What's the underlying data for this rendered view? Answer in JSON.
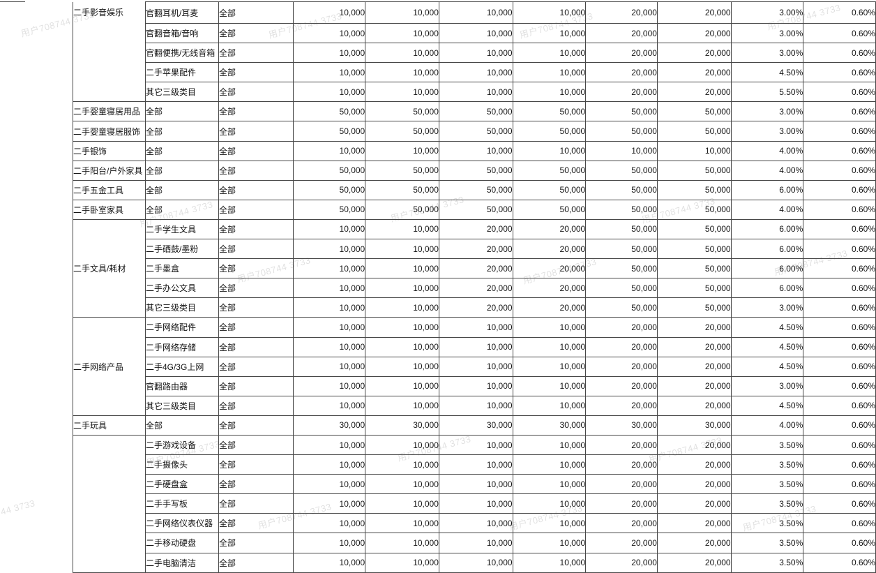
{
  "watermark": {
    "text": "用户708744 3733"
  },
  "table": {
    "rows": [
      {
        "group": "二手影音娱乐",
        "group_rowspan": 5,
        "group_valign": "top",
        "subcategory": "官翻耳机/耳麦",
        "scope": "全部",
        "values": [
          "10,000",
          "10,000",
          "10,000",
          "10,000",
          "20,000",
          "20,000"
        ],
        "rate1": "3.00%",
        "rate2": "0.60%"
      },
      {
        "subcategory": "官翻音箱/音响",
        "scope": "全部",
        "values": [
          "10,000",
          "10,000",
          "10,000",
          "10,000",
          "20,000",
          "20,000"
        ],
        "rate1": "3.00%",
        "rate2": "0.60%"
      },
      {
        "subcategory": "官翻便携/无线音箱",
        "scope": "全部",
        "values": [
          "10,000",
          "10,000",
          "10,000",
          "10,000",
          "20,000",
          "20,000"
        ],
        "rate1": "3.00%",
        "rate2": "0.60%"
      },
      {
        "subcategory": "二手苹果配件",
        "scope": "全部",
        "values": [
          "10,000",
          "10,000",
          "10,000",
          "10,000",
          "20,000",
          "20,000"
        ],
        "rate1": "4.50%",
        "rate2": "0.60%"
      },
      {
        "subcategory": "其它三级类目",
        "scope": "全部",
        "values": [
          "10,000",
          "10,000",
          "10,000",
          "10,000",
          "20,000",
          "20,000"
        ],
        "rate1": "5.50%",
        "rate2": "0.60%"
      },
      {
        "group": "二手婴童寝居用品",
        "group_rowspan": 1,
        "subcategory": "全部",
        "scope": "全部",
        "values": [
          "50,000",
          "50,000",
          "50,000",
          "50,000",
          "50,000",
          "50,000"
        ],
        "rate1": "3.00%",
        "rate2": "0.60%"
      },
      {
        "group": "二手婴童寝居服饰",
        "group_rowspan": 1,
        "subcategory": "全部",
        "scope": "全部",
        "values": [
          "50,000",
          "50,000",
          "50,000",
          "50,000",
          "50,000",
          "50,000"
        ],
        "rate1": "3.00%",
        "rate2": "0.60%"
      },
      {
        "group": "二手银饰",
        "group_rowspan": 1,
        "subcategory": "全部",
        "scope": "全部",
        "values": [
          "10,000",
          "10,000",
          "10,000",
          "10,000",
          "10,000",
          "10,000"
        ],
        "rate1": "4.00%",
        "rate2": "0.60%"
      },
      {
        "group": "二手阳台/户外家具",
        "group_rowspan": 1,
        "subcategory": "全部",
        "scope": "全部",
        "values": [
          "50,000",
          "50,000",
          "50,000",
          "50,000",
          "50,000",
          "50,000"
        ],
        "rate1": "4.00%",
        "rate2": "0.60%"
      },
      {
        "group": "二手五金工具",
        "group_rowspan": 1,
        "subcategory": "全部",
        "scope": "全部",
        "values": [
          "50,000",
          "50,000",
          "50,000",
          "50,000",
          "50,000",
          "50,000"
        ],
        "rate1": "6.00%",
        "rate2": "0.60%"
      },
      {
        "group": "二手卧室家具",
        "group_rowspan": 1,
        "subcategory": "全部",
        "scope": "全部",
        "values": [
          "50,000",
          "50,000",
          "50,000",
          "50,000",
          "50,000",
          "50,000"
        ],
        "rate1": "4.00%",
        "rate2": "0.60%"
      },
      {
        "group": "二手文具/耗材",
        "group_rowspan": 5,
        "subcategory": "二手学生文具",
        "scope": "全部",
        "values": [
          "10,000",
          "10,000",
          "20,000",
          "20,000",
          "50,000",
          "50,000"
        ],
        "rate1": "6.00%",
        "rate2": "0.60%"
      },
      {
        "subcategory": "二手硒鼓/墨粉",
        "scope": "全部",
        "values": [
          "10,000",
          "10,000",
          "20,000",
          "20,000",
          "50,000",
          "50,000"
        ],
        "rate1": "6.00%",
        "rate2": "0.60%"
      },
      {
        "subcategory": "二手墨盒",
        "scope": "全部",
        "values": [
          "10,000",
          "10,000",
          "20,000",
          "20,000",
          "50,000",
          "50,000"
        ],
        "rate1": "6.00%",
        "rate2": "0.60%"
      },
      {
        "subcategory": "二手办公文具",
        "scope": "全部",
        "values": [
          "10,000",
          "10,000",
          "20,000",
          "20,000",
          "50,000",
          "50,000"
        ],
        "rate1": "6.00%",
        "rate2": "0.60%"
      },
      {
        "subcategory": "其它三级类目",
        "scope": "全部",
        "values": [
          "10,000",
          "10,000",
          "20,000",
          "20,000",
          "50,000",
          "50,000"
        ],
        "rate1": "3.00%",
        "rate2": "0.60%"
      },
      {
        "group": "二手网络产品",
        "group_rowspan": 5,
        "subcategory": "二手网络配件",
        "scope": "全部",
        "values": [
          "10,000",
          "10,000",
          "10,000",
          "10,000",
          "20,000",
          "20,000"
        ],
        "rate1": "4.50%",
        "rate2": "0.60%"
      },
      {
        "subcategory": "二手网络存储",
        "scope": "全部",
        "values": [
          "10,000",
          "10,000",
          "10,000",
          "10,000",
          "20,000",
          "20,000"
        ],
        "rate1": "4.50%",
        "rate2": "0.60%"
      },
      {
        "subcategory": "二手4G/3G上网",
        "scope": "全部",
        "values": [
          "10,000",
          "10,000",
          "10,000",
          "10,000",
          "20,000",
          "20,000"
        ],
        "rate1": "4.50%",
        "rate2": "0.60%"
      },
      {
        "subcategory": "官翻路由器",
        "scope": "全部",
        "values": [
          "10,000",
          "10,000",
          "10,000",
          "10,000",
          "20,000",
          "20,000"
        ],
        "rate1": "3.00%",
        "rate2": "0.60%"
      },
      {
        "subcategory": "其它三级类目",
        "scope": "全部",
        "values": [
          "10,000",
          "10,000",
          "10,000",
          "10,000",
          "20,000",
          "20,000"
        ],
        "rate1": "4.50%",
        "rate2": "0.60%"
      },
      {
        "group": "二手玩具",
        "group_rowspan": 1,
        "subcategory": "全部",
        "scope": "全部",
        "values": [
          "30,000",
          "30,000",
          "30,000",
          "30,000",
          "30,000",
          "30,000"
        ],
        "rate1": "4.00%",
        "rate2": "0.60%"
      },
      {
        "group": "",
        "group_rowspan": 7,
        "subcategory": "二手游戏设备",
        "scope": "全部",
        "values": [
          "10,000",
          "10,000",
          "10,000",
          "10,000",
          "20,000",
          "20,000"
        ],
        "rate1": "3.50%",
        "rate2": "0.60%"
      },
      {
        "subcategory": "二手摄像头",
        "scope": "全部",
        "values": [
          "10,000",
          "10,000",
          "10,000",
          "10,000",
          "20,000",
          "20,000"
        ],
        "rate1": "3.50%",
        "rate2": "0.60%"
      },
      {
        "subcategory": "二手硬盘盒",
        "scope": "全部",
        "values": [
          "10,000",
          "10,000",
          "10,000",
          "10,000",
          "20,000",
          "20,000"
        ],
        "rate1": "3.50%",
        "rate2": "0.60%"
      },
      {
        "subcategory": "二手手写板",
        "scope": "全部",
        "values": [
          "10,000",
          "10,000",
          "10,000",
          "10,000",
          "20,000",
          "20,000"
        ],
        "rate1": "3.50%",
        "rate2": "0.60%"
      },
      {
        "subcategory": "二手网络仪表仪器",
        "scope": "全部",
        "values": [
          "10,000",
          "10,000",
          "10,000",
          "10,000",
          "20,000",
          "20,000"
        ],
        "rate1": "3.50%",
        "rate2": "0.60%"
      },
      {
        "subcategory": "二手移动硬盘",
        "scope": "全部",
        "values": [
          "10,000",
          "10,000",
          "10,000",
          "10,000",
          "20,000",
          "20,000"
        ],
        "rate1": "3.50%",
        "rate2": "0.60%"
      },
      {
        "subcategory": "二手电脑清洁",
        "scope": "全部",
        "values": [
          "10,000",
          "10,000",
          "10,000",
          "10,000",
          "20,000",
          "20,000"
        ],
        "rate1": "3.50%",
        "rate2": "0.60%"
      }
    ]
  }
}
